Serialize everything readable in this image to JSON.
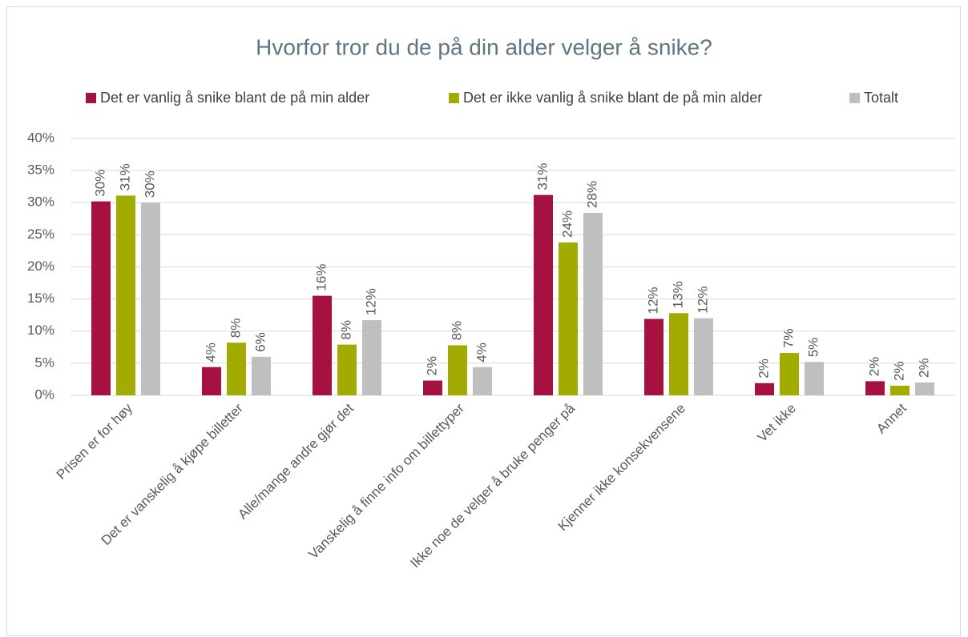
{
  "chart_data": {
    "type": "bar",
    "title": "Hvorfor tror du de på din alder velger å snike?",
    "categories": [
      "Prisen er for høy",
      "Det er vanskelig å kjøpe billetter",
      "Alle/mange andre gjør det",
      "Vanskelig å finne info om billettyper",
      "Ikke noe de velger å bruke penger på",
      "Kjenner ikke konsekvensene",
      "Vet ikke",
      "Annet"
    ],
    "series": [
      {
        "name": "Det er vanlig å snike blant de på min alder",
        "color": "#a5123f",
        "values": [
          30.2,
          4.4,
          15.5,
          2.3,
          31.2,
          11.9,
          1.9,
          2.2
        ],
        "value_labels": [
          "30%",
          "4%",
          "16%",
          "2%",
          "31%",
          "12%",
          "2%",
          "2%"
        ]
      },
      {
        "name": "Det er ikke vanlig å snike blant de på min alder",
        "color": "#a1ab00",
        "values": [
          31.1,
          8.2,
          7.9,
          7.8,
          23.8,
          12.8,
          6.6,
          1.5
        ],
        "value_labels": [
          "31%",
          "8%",
          "8%",
          "8%",
          "24%",
          "13%",
          "7%",
          "2%"
        ]
      },
      {
        "name": "Totalt",
        "color": "#bfbfbf",
        "values": [
          30.0,
          6.0,
          11.7,
          4.4,
          28.4,
          12.0,
          5.2,
          2.0
        ],
        "value_labels": [
          "30%",
          "6%",
          "12%",
          "4%",
          "28%",
          "12%",
          "5%",
          "2%"
        ]
      }
    ],
    "ylim": [
      0,
      40
    ],
    "yticks": [
      {
        "value": 0,
        "label": "0%"
      },
      {
        "value": 5,
        "label": "5%"
      },
      {
        "value": 10,
        "label": "10%"
      },
      {
        "value": 15,
        "label": "15%"
      },
      {
        "value": 20,
        "label": "20%"
      },
      {
        "value": 25,
        "label": "25%"
      },
      {
        "value": 30,
        "label": "30%"
      },
      {
        "value": 35,
        "label": "35%"
      },
      {
        "value": 40,
        "label": "40%"
      }
    ],
    "grid": true,
    "legend": "top"
  }
}
